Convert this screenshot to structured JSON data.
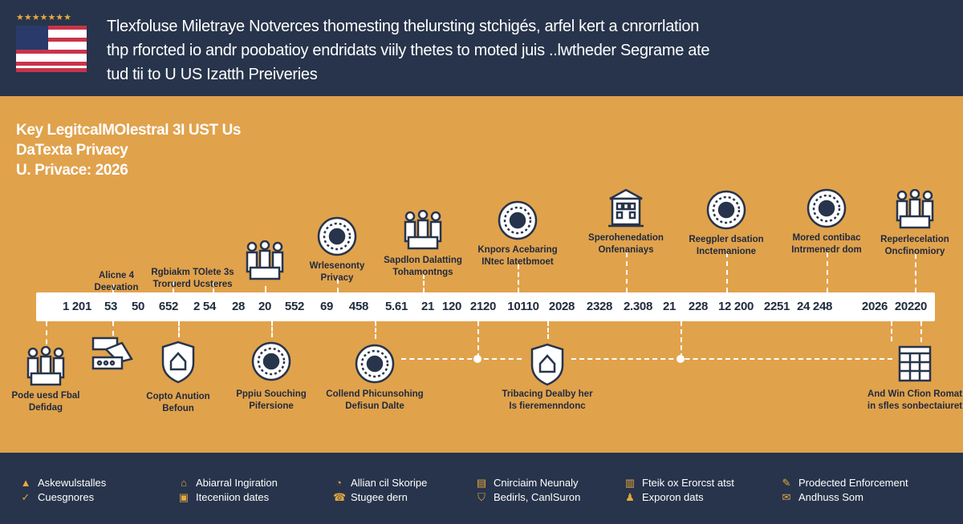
{
  "header": {
    "lines": [
      "Tlexfoluse Miletraye Notverces thomesting thelursting stchigés, arfel kert a cnrorrlation",
      "thp rforcted io andr poobatioy endridats viily thetes to moted juis ..lwtheder Segrame ate",
      "tud tii to U US Izatth Preiveries"
    ],
    "flag_icon": "us-flag-icon"
  },
  "title": {
    "lines": [
      "Key LegitcalMOlestral 3I UST Us",
      "DaTexta Privacy",
      "U. Privace: 2026"
    ]
  },
  "timeline": {
    "numbers": [
      "1 201",
      "53",
      "50",
      "652",
      "2 54",
      "28",
      "20",
      "552",
      "69",
      "458",
      "5.61",
      "21",
      "120",
      "2120",
      "10110",
      "2028",
      "2328",
      "2.308",
      "21",
      "228",
      "12 200",
      "2251",
      "24 248",
      "2026",
      "20220"
    ],
    "top_milestones": [
      {
        "lines": [
          "Alicne 4",
          "Deevation"
        ],
        "icon": "none"
      },
      {
        "lines": [
          "Rgbiakm TOlete 3s",
          "Troruerd Ucsteres"
        ],
        "icon": "none"
      },
      {
        "lines": [],
        "icon": "people-group-icon"
      },
      {
        "lines": [
          "Wrlesenonty",
          "Privacy"
        ],
        "icon": "seal-emblem-icon"
      },
      {
        "lines": [
          "Sapdlon Dalatting",
          "Tohamontngs"
        ],
        "icon": "people-podium-icon"
      },
      {
        "lines": [
          "Knpors Acebaring",
          "INtec latetbmoet"
        ],
        "icon": "gear-circle-icon"
      },
      {
        "lines": [
          "Sperohenedation",
          "Onfenaniays"
        ],
        "icon": "government-building-icon"
      },
      {
        "lines": [
          "Reegpler dsation",
          "Inctemanione"
        ],
        "icon": "network-chip-icon"
      },
      {
        "lines": [
          "Mored contibac",
          "Intrmenedr dom"
        ],
        "icon": "badge-seal-icon"
      },
      {
        "lines": [
          "Reperlecelation",
          "Oncfinomiory"
        ],
        "icon": "people-money-icon"
      }
    ],
    "bottom_milestones": [
      {
        "lines": [
          "Pode uesd Fbal",
          "Defidag"
        ],
        "icon": "seal-people-icon"
      },
      {
        "lines": [],
        "icon": "hand-card-icon"
      },
      {
        "lines": [
          "Copto Anution",
          "Befoun"
        ],
        "icon": "shield-circuit-icon"
      },
      {
        "lines": [
          "Pppiu Souching",
          "Pifersione"
        ],
        "icon": "virus-gear-icon"
      },
      {
        "lines": [
          "Collend Phicunsohing",
          "Defisun Dalte"
        ],
        "icon": "star-seal-icon"
      },
      {
        "lines": [
          "Tribacing Dealby her",
          "Is fieremenndonc"
        ],
        "icon": "shield-building-icon"
      },
      {
        "lines": [
          "And Win Cfion Romat",
          "in sfles sonbectaiuret"
        ],
        "icon": "calendar-icon"
      }
    ]
  },
  "footer": {
    "items": [
      {
        "label": "Askewulstalles",
        "icon": "cone-icon"
      },
      {
        "label": "Cuesgnores",
        "icon": "check-icon"
      },
      {
        "label": "Abiarral Ingiration",
        "icon": "house-icon"
      },
      {
        "label": "Iteceniion dates",
        "icon": "document-icon"
      },
      {
        "label": "Allian cil Skoripe",
        "icon": "clock-icon"
      },
      {
        "label": "Stugee dern",
        "icon": "phone-icon"
      },
      {
        "label": "Cnirciaim Neunaly",
        "icon": "folder-icon"
      },
      {
        "label": "Bedirls, CanlSuron",
        "icon": "shield-badge-icon"
      },
      {
        "label": "Fteik ox Erorcst atst",
        "icon": "printer-icon"
      },
      {
        "label": "Exporon dats",
        "icon": "people-icon"
      },
      {
        "label": "Prodected Enforcement",
        "icon": "pencil-icon"
      },
      {
        "label": "Andhuss Som",
        "icon": "envelope-icon"
      }
    ]
  },
  "colors": {
    "navy": "#27344B",
    "orange": "#E1A24C",
    "accent": "#E6A83F"
  }
}
